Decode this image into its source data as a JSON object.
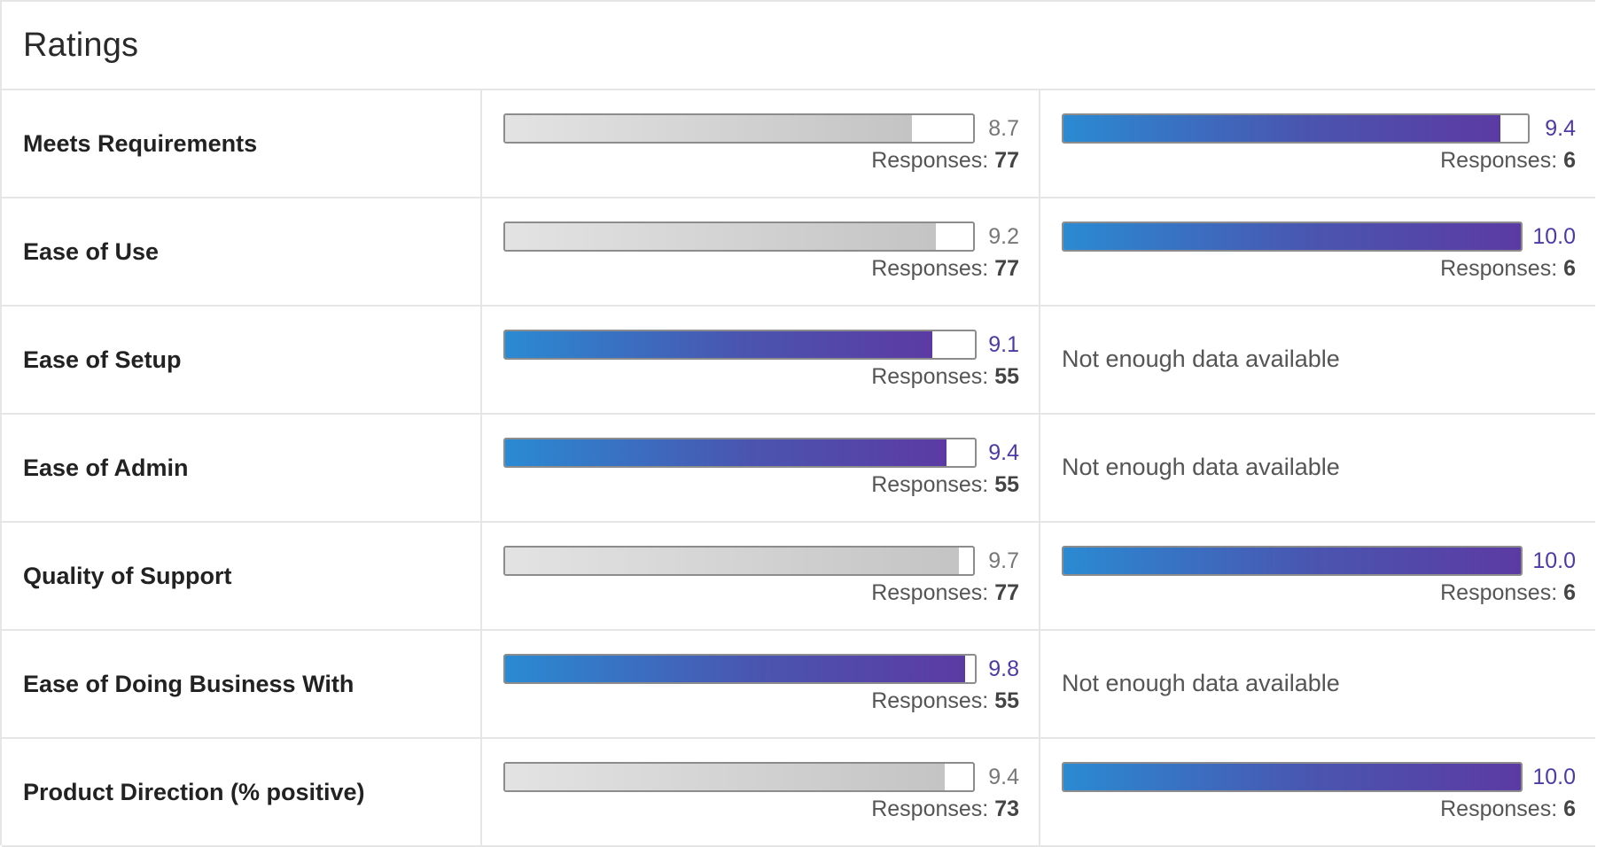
{
  "title": "Ratings",
  "responses_label": "Responses: ",
  "rows": [
    {
      "label": "Meets Requirements",
      "a": {
        "score": "8.7",
        "fraction": 0.87,
        "responses": "77",
        "style": "grey"
      },
      "b": {
        "score": "9.4",
        "fraction": 0.94,
        "responses": "6",
        "style": "blue"
      }
    },
    {
      "label": "Ease of Use",
      "a": {
        "score": "9.2",
        "fraction": 0.92,
        "responses": "77",
        "style": "grey"
      },
      "b": {
        "score": "10.0",
        "fraction": 1.0,
        "responses": "6",
        "style": "blue"
      }
    },
    {
      "label": "Ease of Setup",
      "a": {
        "score": "9.1",
        "fraction": 0.91,
        "responses": "55",
        "style": "blue"
      },
      "b": {
        "nodata": "Not enough data available"
      }
    },
    {
      "label": "Ease of Admin",
      "a": {
        "score": "9.4",
        "fraction": 0.94,
        "responses": "55",
        "style": "blue"
      },
      "b": {
        "nodata": "Not enough data available"
      }
    },
    {
      "label": "Quality of Support",
      "a": {
        "score": "9.7",
        "fraction": 0.97,
        "responses": "77",
        "style": "grey"
      },
      "b": {
        "score": "10.0",
        "fraction": 1.0,
        "responses": "6",
        "style": "blue"
      }
    },
    {
      "label": "Ease of Doing Business With",
      "a": {
        "score": "9.8",
        "fraction": 0.98,
        "responses": "55",
        "style": "blue"
      },
      "b": {
        "nodata": "Not enough data available"
      }
    },
    {
      "label": "Product Direction (% positive)",
      "a": {
        "score": "9.4",
        "fraction": 0.94,
        "responses": "73",
        "style": "grey"
      },
      "b": {
        "score": "10.0",
        "fraction": 1.0,
        "responses": "6",
        "style": "blue"
      }
    }
  ]
}
